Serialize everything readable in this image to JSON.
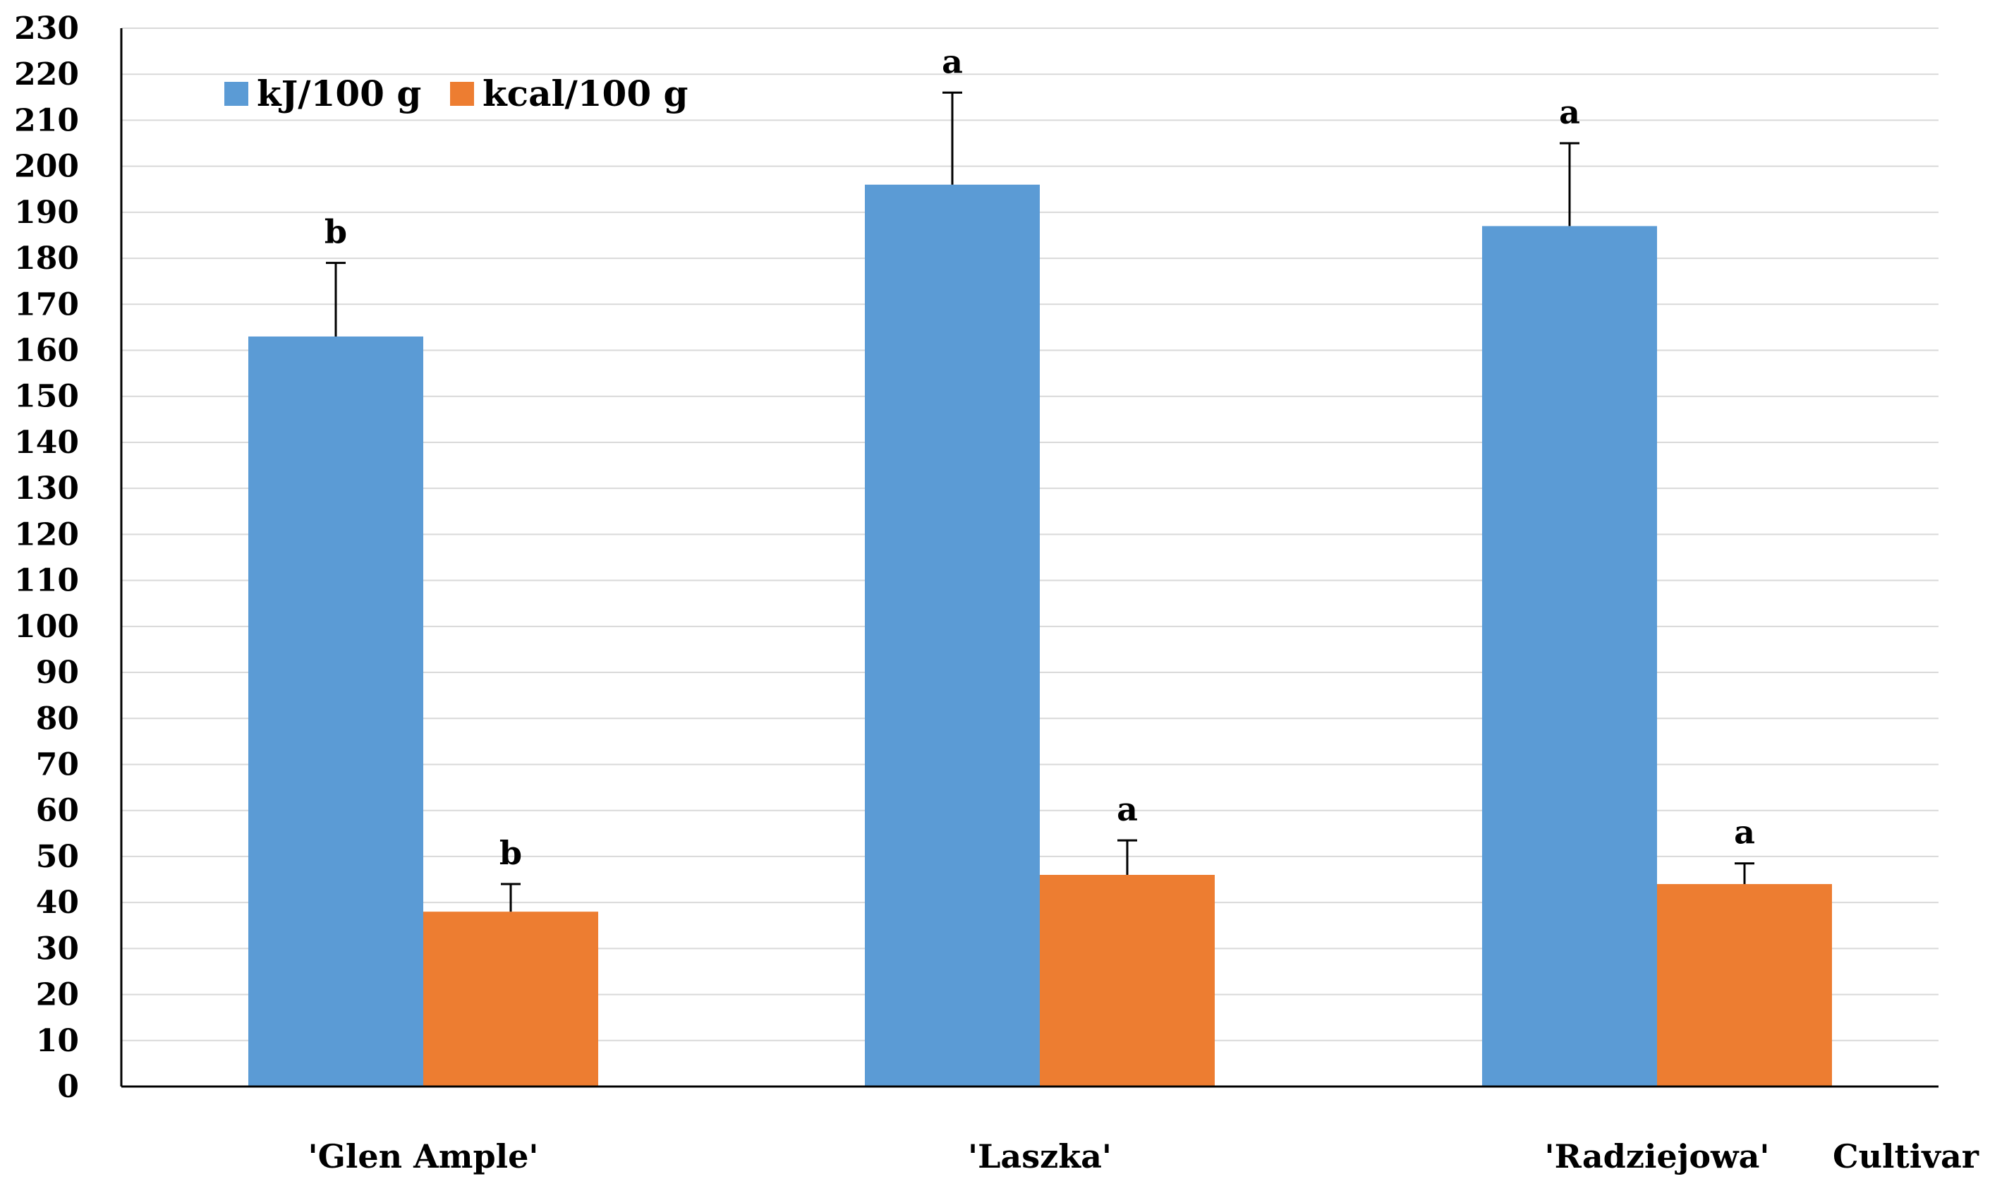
{
  "chart_data": {
    "type": "bar",
    "title": "",
    "xlabel": "Cultivar",
    "ylabel": "",
    "categories": [
      "'Glen Ample'",
      "'Laszka'",
      "'Radziejowa'"
    ],
    "series": [
      {
        "name": "kJ/100 g",
        "color": "#5B9BD5",
        "values": [
          163,
          196,
          187
        ],
        "errors": [
          16,
          20,
          18
        ],
        "significance": [
          "b",
          "a",
          "a"
        ]
      },
      {
        "name": "kcal/100 g",
        "color": "#ED7D31",
        "values": [
          38,
          46,
          44
        ],
        "errors": [
          6,
          7.5,
          4.5
        ],
        "significance": [
          "b",
          "a",
          "a"
        ]
      }
    ],
    "ylim": [
      0,
      230
    ],
    "yticks": [
      0,
      10,
      20,
      30,
      40,
      50,
      60,
      70,
      80,
      90,
      100,
      110,
      120,
      130,
      140,
      150,
      160,
      170,
      180,
      190,
      200,
      210,
      220,
      230
    ],
    "grid": true,
    "legend_position": "top-left"
  }
}
